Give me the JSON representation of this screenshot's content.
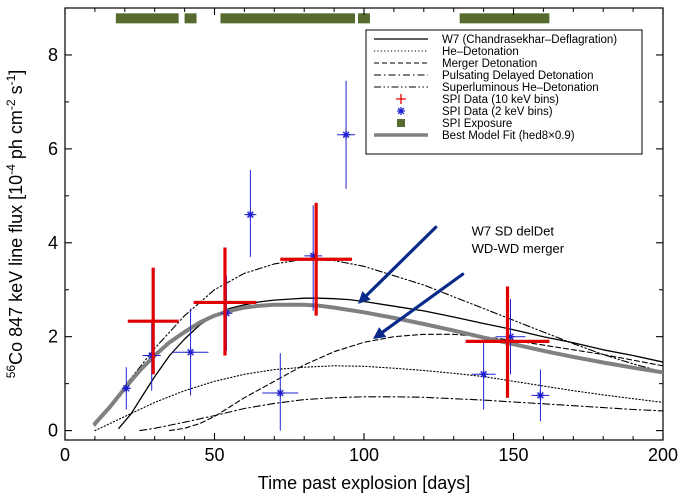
{
  "chart_data": {
    "type": "line",
    "title": "",
    "xlabel": "Time past explosion [days]",
    "ylabel_sup": "56",
    "ylabel_main": "Co 847 keV line flux [10",
    "ylabel_exp1": "-4",
    "ylabel_unit": " ph cm",
    "ylabel_exp2": "-2",
    "ylabel_s": " s",
    "ylabel_exp3": "-1",
    "ylabel_close": "]",
    "xlim": [
      0,
      200
    ],
    "ylim": [
      -0.2,
      9.0
    ],
    "xticks": [
      0,
      50,
      100,
      150,
      200
    ],
    "yticks": [
      0,
      2,
      4,
      6,
      8
    ],
    "legend_position": "top-right",
    "colors": {
      "model_black": "#000000",
      "best_fit": "#808080",
      "spi_10kev": "#e00000",
      "spi_2kev": "#2020d0",
      "exposure": "#556b2f",
      "arrow": "#0a2a8a"
    },
    "series": [
      {
        "name": "W7 (Chandrasekhar–Deflagration)",
        "style": "solid",
        "x": [
          18,
          22,
          26,
          30,
          35,
          40,
          45,
          50,
          55,
          60,
          65,
          70,
          75,
          80,
          85,
          90,
          95,
          100,
          110,
          120,
          130,
          140,
          150,
          160,
          170,
          180,
          190,
          200
        ],
        "y": [
          0.05,
          0.35,
          0.75,
          1.15,
          1.6,
          1.95,
          2.25,
          2.45,
          2.6,
          2.68,
          2.74,
          2.78,
          2.8,
          2.82,
          2.82,
          2.81,
          2.79,
          2.75,
          2.65,
          2.55,
          2.42,
          2.28,
          2.15,
          2.0,
          1.87,
          1.72,
          1.6,
          1.46
        ]
      },
      {
        "name": "He–Detonation",
        "style": "dotted",
        "x": [
          10,
          20,
          30,
          40,
          50,
          60,
          70,
          80,
          90,
          100,
          110,
          120,
          130,
          140,
          150,
          160,
          170,
          180,
          190,
          200
        ],
        "y": [
          0.0,
          0.3,
          0.6,
          0.85,
          1.05,
          1.2,
          1.3,
          1.35,
          1.38,
          1.37,
          1.33,
          1.28,
          1.22,
          1.15,
          1.05,
          0.95,
          0.85,
          0.76,
          0.68,
          0.6
        ]
      },
      {
        "name": "Merger Detonation",
        "style": "dashed",
        "x": [
          35,
          40,
          45,
          50,
          55,
          60,
          70,
          80,
          90,
          100,
          110,
          120,
          130,
          140,
          150,
          160,
          170,
          180,
          190,
          200
        ],
        "y": [
          0.0,
          0.05,
          0.15,
          0.3,
          0.5,
          0.7,
          1.05,
          1.4,
          1.68,
          1.88,
          2.0,
          2.05,
          2.05,
          2.0,
          1.92,
          1.82,
          1.72,
          1.62,
          1.5,
          1.38
        ]
      },
      {
        "name": "Pulsating Delayed Detonation",
        "style": "dashdot",
        "x": [
          25,
          30,
          40,
          50,
          60,
          70,
          80,
          90,
          100,
          110,
          120,
          130,
          140,
          150,
          160,
          170,
          180,
          190,
          200
        ],
        "y": [
          0.0,
          0.05,
          0.18,
          0.32,
          0.47,
          0.58,
          0.66,
          0.7,
          0.72,
          0.72,
          0.71,
          0.68,
          0.65,
          0.61,
          0.57,
          0.53,
          0.49,
          0.45,
          0.42
        ]
      },
      {
        "name": "Superluminous He–Detonation",
        "style": "dashdotdot",
        "x": [
          10,
          15,
          20,
          25,
          30,
          40,
          50,
          60,
          70,
          80,
          90,
          100,
          110,
          120,
          130,
          140,
          150,
          160,
          170,
          180,
          190,
          200
        ],
        "y": [
          0.1,
          0.5,
          0.95,
          1.35,
          1.75,
          2.45,
          3.0,
          3.35,
          3.55,
          3.65,
          3.62,
          3.5,
          3.3,
          3.1,
          2.85,
          2.6,
          2.35,
          2.1,
          1.85,
          1.62,
          1.42,
          1.25
        ]
      },
      {
        "name": "Best Model Fit (hed8×0.9)",
        "style": "bestfit",
        "x": [
          10,
          15,
          20,
          25,
          30,
          35,
          40,
          45,
          50,
          55,
          60,
          65,
          70,
          75,
          80,
          85,
          90,
          100,
          110,
          120,
          130,
          140,
          150,
          160,
          170,
          180,
          190,
          200
        ],
        "y": [
          0.15,
          0.5,
          0.9,
          1.28,
          1.6,
          1.88,
          2.1,
          2.3,
          2.45,
          2.55,
          2.62,
          2.66,
          2.68,
          2.68,
          2.68,
          2.66,
          2.62,
          2.52,
          2.4,
          2.27,
          2.13,
          1.98,
          1.84,
          1.7,
          1.57,
          1.45,
          1.34,
          1.24
        ]
      }
    ],
    "spi_10kev": {
      "name": "SPI Data (10 keV bins)",
      "points": [
        {
          "x": 29.5,
          "xerr": 8.5,
          "y": 2.33,
          "ylo": 1.2,
          "yhi": 3.47
        },
        {
          "x": 53.5,
          "xerr": 10.5,
          "y": 2.73,
          "ylo": 1.6,
          "yhi": 3.9
        },
        {
          "x": 84.0,
          "xerr": 12.0,
          "y": 3.65,
          "ylo": 2.45,
          "yhi": 4.85
        },
        {
          "x": 148.0,
          "xerr": 14.0,
          "y": 1.9,
          "ylo": 0.7,
          "yhi": 3.07
        }
      ]
    },
    "spi_2kev": {
      "name": "SPI Data (2 keV bins)",
      "points": [
        {
          "x": 20.5,
          "xerr": 1.5,
          "y": 0.9,
          "ylo": 0.45,
          "yhi": 1.35
        },
        {
          "x": 29.0,
          "xerr": 3.0,
          "y": 1.6,
          "ylo": 0.85,
          "yhi": 2.35
        },
        {
          "x": 42.0,
          "xerr": 6.0,
          "y": 1.67,
          "ylo": 0.75,
          "yhi": 2.6
        },
        {
          "x": 54.0,
          "xerr": 2.0,
          "y": 2.5,
          "ylo": 1.7,
          "yhi": 3.3
        },
        {
          "x": 62.0,
          "xerr": 2.0,
          "y": 4.6,
          "ylo": 3.7,
          "yhi": 5.55
        },
        {
          "x": 72.0,
          "xerr": 6.0,
          "y": 0.8,
          "ylo": 0.0,
          "yhi": 1.65
        },
        {
          "x": 83.0,
          "xerr": 3.0,
          "y": 3.72,
          "ylo": 2.55,
          "yhi": 4.8
        },
        {
          "x": 94.0,
          "xerr": 3.0,
          "y": 6.3,
          "ylo": 5.15,
          "yhi": 7.45
        },
        {
          "x": 140.0,
          "xerr": 4.0,
          "y": 1.2,
          "ylo": 0.45,
          "yhi": 1.9
        },
        {
          "x": 149.0,
          "xerr": 5.0,
          "y": 2.0,
          "ylo": 1.2,
          "yhi": 2.8
        },
        {
          "x": 159.0,
          "xerr": 3.0,
          "y": 0.75,
          "ylo": 0.2,
          "yhi": 1.3
        }
      ]
    },
    "exposure": {
      "name": "SPI Exposure",
      "y": 8.78,
      "intervals": [
        [
          17,
          38
        ],
        [
          40,
          44
        ],
        [
          52,
          97
        ],
        [
          98,
          102
        ],
        [
          132,
          162
        ]
      ]
    },
    "annotations": [
      {
        "text": "W7 SD delDet",
        "anchor_x": 136,
        "anchor_y": 4.15
      },
      {
        "text": "WD-WD merger",
        "anchor_x": 136,
        "anchor_y": 3.78
      }
    ],
    "arrows": [
      {
        "from": [
          124,
          4.33
        ],
        "to": [
          98,
          2.7
        ]
      },
      {
        "from": [
          133,
          3.33
        ],
        "to": [
          103,
          1.95
        ]
      }
    ]
  }
}
